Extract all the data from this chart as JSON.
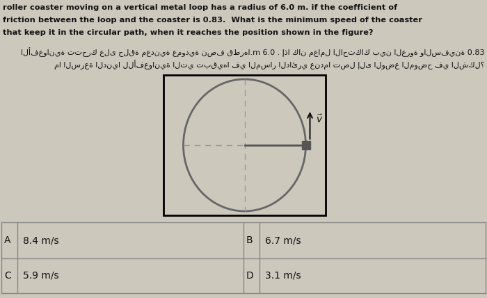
{
  "bg_color": "#cdc8bc",
  "border_color": "#000000",
  "title_en_line1": "roller coaster moving on a vertical metal loop has a radius of 6.0 m. if the coefficient of",
  "title_en_line2": "friction between the loop and the coaster is 0.83.  What is the minimum speed of the coaster",
  "title_en_line3": "that keep it in the circular path, when it reaches the position shown in the figure?",
  "title_ar_line1": "الأفعوانية تتحرك على حلقة معدنية عمودية نصف قطرها.m 6.0 . إذا كان معامل الاحتكاك بين العروة والسفينة 0.83",
  "title_ar_line2": "ما السرعة الدنيا للأفعوانية التي تبقيها في المسار الدائري عندما تصل إلى الوضع الموضح في الشكل؟",
  "options": [
    {
      "label": "A",
      "text": "8.4 m/s"
    },
    {
      "label": "B",
      "text": "6.7 m/s"
    },
    {
      "label": "C",
      "text": "5.9 m/s"
    },
    {
      "label": "D",
      "text": "3.1 m/s"
    }
  ],
  "circle_color": "#666666",
  "dashed_color": "#999999",
  "coaster_color": "#555555",
  "arrow_color": "#111111",
  "text_color": "#111111",
  "table_line_color": "#888888"
}
